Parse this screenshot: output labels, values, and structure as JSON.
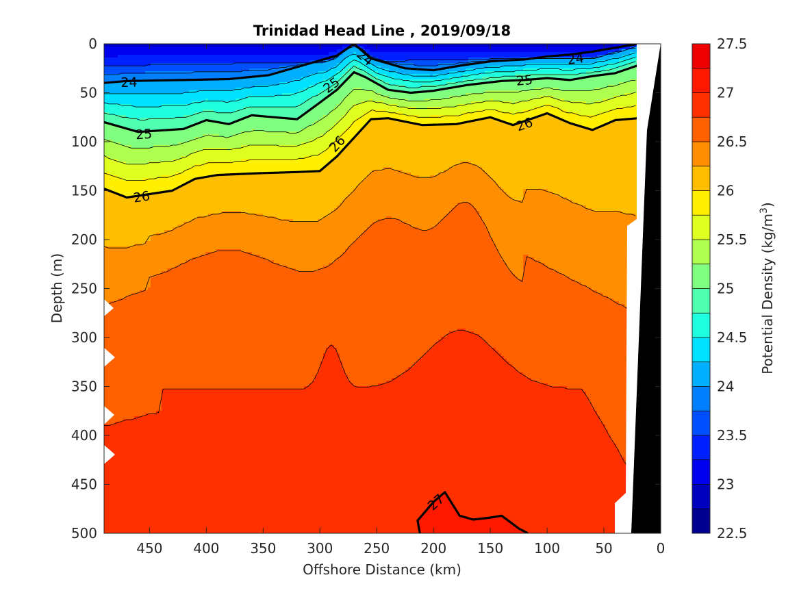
{
  "chart_data": {
    "type": "contour",
    "title": "Trinidad Head Line , 2019/09/18",
    "xlabel": "Offshore Distance (km)",
    "ylabel": "Depth (m)",
    "xlim": [
      490,
      0
    ],
    "ylim": [
      0,
      500
    ],
    "x_reversed": true,
    "y_reversed": true,
    "x_ticks": [
      450,
      400,
      350,
      300,
      250,
      200,
      150,
      100,
      50,
      0
    ],
    "y_ticks": [
      0,
      50,
      100,
      150,
      200,
      250,
      300,
      350,
      400,
      450,
      500
    ],
    "colorbar": {
      "label": "Potential Density (kg/m³)",
      "label_base": "Potential Density (kg/m",
      "label_sup": "3",
      "label_end": ")",
      "range": [
        22.5,
        27.5
      ],
      "step": 0.25,
      "ticks": [
        22.5,
        23,
        23.5,
        24,
        24.5,
        25,
        25.5,
        26,
        26.5,
        27,
        27.5
      ],
      "tick_labels": [
        "22.5",
        "23",
        "23.5",
        "24",
        "24.5",
        "25",
        "25.5",
        "26",
        "26.5",
        "27",
        "27.5"
      ],
      "colors": [
        "#00008f",
        "#0000bf",
        "#0000ef",
        "#0020ff",
        "#0050ff",
        "#0080ff",
        "#00b0ff",
        "#00e0ff",
        "#20ffdf",
        "#50ffaf",
        "#80ff80",
        "#afff50",
        "#dfff20",
        "#ffef00",
        "#ffbf00",
        "#ff8f00",
        "#ff6000",
        "#ff3000",
        "#ff1800",
        "#ef0000",
        "#bf0000"
      ]
    },
    "isopycnals": [
      {
        "value": 24,
        "label": "24",
        "points": [
          [
            490,
            40
          ],
          [
            470,
            38
          ],
          [
            420,
            37
          ],
          [
            380,
            36
          ],
          [
            345,
            32
          ],
          [
            315,
            22
          ],
          [
            285,
            12
          ],
          [
            270,
            0
          ],
          [
            255,
            15
          ],
          [
            225,
            25
          ],
          [
            200,
            27
          ],
          [
            175,
            22
          ],
          [
            150,
            18
          ],
          [
            120,
            16
          ],
          [
            100,
            13
          ],
          [
            80,
            11
          ],
          [
            60,
            8
          ],
          [
            40,
            4
          ],
          [
            20,
            0
          ]
        ],
        "labels": [
          [
            468,
            39
          ],
          [
            260,
            14
          ],
          [
            75,
            15
          ]
        ]
      },
      {
        "value": 25,
        "label": "25",
        "points": [
          [
            490,
            80
          ],
          [
            460,
            90
          ],
          [
            420,
            87
          ],
          [
            400,
            78
          ],
          [
            380,
            82
          ],
          [
            360,
            73
          ],
          [
            340,
            75
          ],
          [
            320,
            77
          ],
          [
            300,
            60
          ],
          [
            285,
            47
          ],
          [
            270,
            29
          ],
          [
            260,
            34
          ],
          [
            240,
            47
          ],
          [
            220,
            50
          ],
          [
            200,
            48
          ],
          [
            170,
            42
          ],
          [
            140,
            38
          ],
          [
            120,
            37
          ],
          [
            100,
            35
          ],
          [
            80,
            37
          ],
          [
            60,
            33
          ],
          [
            40,
            30
          ],
          [
            20,
            22
          ]
        ],
        "labels": [
          [
            455,
            92
          ],
          [
            290,
            42
          ],
          [
            120,
            37
          ]
        ]
      },
      {
        "value": 26,
        "label": "26",
        "points": [
          [
            490,
            148
          ],
          [
            470,
            157
          ],
          [
            430,
            150
          ],
          [
            410,
            138
          ],
          [
            390,
            134
          ],
          [
            350,
            132
          ],
          [
            320,
            131
          ],
          [
            300,
            130
          ],
          [
            285,
            115
          ],
          [
            270,
            96
          ],
          [
            255,
            77
          ],
          [
            240,
            76
          ],
          [
            210,
            83
          ],
          [
            180,
            82
          ],
          [
            150,
            75
          ],
          [
            130,
            83
          ],
          [
            110,
            75
          ],
          [
            100,
            71
          ],
          [
            80,
            81
          ],
          [
            60,
            88
          ],
          [
            40,
            78
          ],
          [
            20,
            76
          ]
        ],
        "labels": [
          [
            457,
            156
          ],
          [
            285,
            102
          ],
          [
            120,
            82
          ]
        ]
      },
      {
        "value": 27,
        "label": "27",
        "points": [
          [
            212,
            500
          ],
          [
            214,
            487
          ],
          [
            200,
            468
          ],
          [
            190,
            458
          ],
          [
            177,
            482
          ],
          [
            165,
            486
          ],
          [
            150,
            484
          ],
          [
            140,
            482
          ],
          [
            125,
            495
          ],
          [
            117,
            500
          ]
        ],
        "labels": [
          [
            198,
            468
          ]
        ]
      }
    ],
    "blank_regions": "white notches on left edge near 270, 320, 380, 420 m; white wedge near 20–30 km at depth",
    "coastline_mask": "black (land/bottom) at right edge, offshore distance 0–25 km"
  }
}
